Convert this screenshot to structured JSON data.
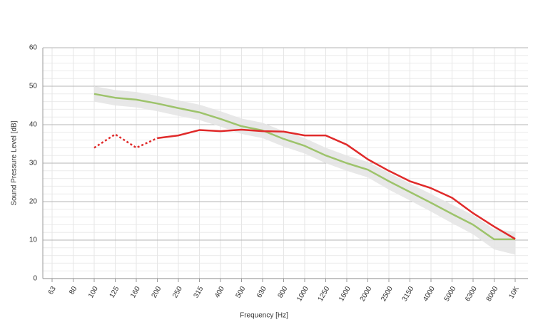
{
  "chart_data": {
    "type": "line",
    "x_label": "Frequency [Hz]",
    "y_label": "Sound Pressure Level [dB]",
    "categories": [
      "63",
      "80",
      "100",
      "125",
      "160",
      "200",
      "250",
      "315",
      "400",
      "500",
      "630",
      "800",
      "1000",
      "1250",
      "1600",
      "2000",
      "2500",
      "3150",
      "4000",
      "5000",
      "6300",
      "8000",
      "10K"
    ],
    "series": [
      {
        "color": "#e02a2a",
        "dash": "dotted",
        "values": [
          null,
          null,
          34,
          37.5,
          34,
          36.5,
          null,
          null,
          null,
          null,
          null,
          null,
          null,
          null,
          null,
          null,
          null,
          null,
          null,
          null,
          null,
          null,
          null
        ]
      },
      {
        "color": "#e02a2a",
        "dash": "solid",
        "values": [
          null,
          null,
          null,
          null,
          null,
          36.5,
          37.2,
          38.6,
          38.3,
          38.7,
          38.3,
          38.2,
          37.2,
          37.2,
          34.8,
          31,
          28,
          25.3,
          23.5,
          21,
          17,
          13.5,
          10.3
        ]
      },
      {
        "color": "#9dc36b",
        "dash": "solid",
        "values": [
          null,
          null,
          48,
          47,
          46.5,
          45.5,
          44.3,
          43.2,
          41.5,
          39.6,
          38.5,
          36.3,
          34.5,
          32,
          30,
          28.3,
          25.3,
          22.5,
          19.7,
          16.8,
          14,
          10.2,
          10.2
        ]
      }
    ],
    "band": {
      "color": "#e4e4e4",
      "upper": [
        null,
        null,
        50,
        49,
        48.5,
        47.5,
        46.3,
        45.2,
        43.5,
        41.6,
        40.5,
        38.3,
        36.5,
        34,
        32,
        30.3,
        27.5,
        24.7,
        22,
        19.2,
        16.5,
        12.8,
        12.2
      ],
      "lower": [
        null,
        null,
        46,
        45,
        44.5,
        43.5,
        42.3,
        41.2,
        39.5,
        37.6,
        36.5,
        34.3,
        32.5,
        30,
        28,
        26.3,
        23.1,
        20.3,
        17.4,
        14.4,
        11.5,
        7.6,
        6.2
      ]
    },
    "ylim": [
      0,
      60
    ],
    "yticks": [
      0,
      10,
      20,
      30,
      40,
      50,
      60
    ],
    "yminor_ticks": [
      2,
      4,
      6,
      8,
      12,
      14,
      16,
      18,
      22,
      24,
      26,
      28,
      32,
      34,
      36,
      38,
      42,
      44,
      46,
      48,
      52,
      54,
      56,
      58
    ],
    "grid": true
  }
}
